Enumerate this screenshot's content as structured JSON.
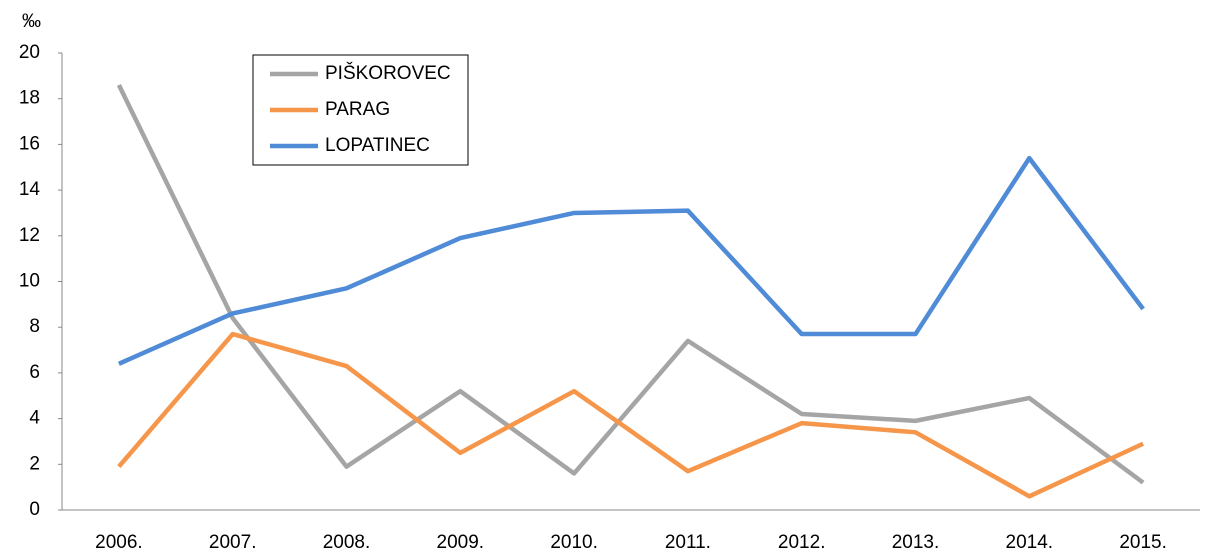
{
  "chart_data": {
    "type": "line",
    "y_label": "‰",
    "categories": [
      "2006.",
      "2007.",
      "2008.",
      "2009.",
      "2010.",
      "2011.",
      "2012.",
      "2013.",
      "2014.",
      "2015."
    ],
    "series": [
      {
        "name": "PIŠKOROVEC",
        "color": "#a5a5a5",
        "values": [
          18.6,
          8.4,
          1.9,
          5.2,
          1.6,
          7.4,
          4.2,
          3.9,
          4.9,
          1.2
        ]
      },
      {
        "name": "PARAG",
        "color": "#f5964a",
        "values": [
          1.9,
          7.7,
          6.3,
          2.5,
          5.2,
          1.7,
          3.8,
          3.4,
          0.6,
          2.9
        ]
      },
      {
        "name": "LOPATINEC",
        "color": "#4f8bd6",
        "values": [
          6.4,
          8.6,
          9.7,
          11.9,
          13.0,
          13.1,
          7.7,
          7.7,
          15.4,
          8.8
        ]
      }
    ],
    "ylim": [
      0,
      20
    ],
    "yticks": [
      0,
      2,
      4,
      6,
      8,
      10,
      12,
      14,
      16,
      18,
      20
    ],
    "grid": false
  }
}
